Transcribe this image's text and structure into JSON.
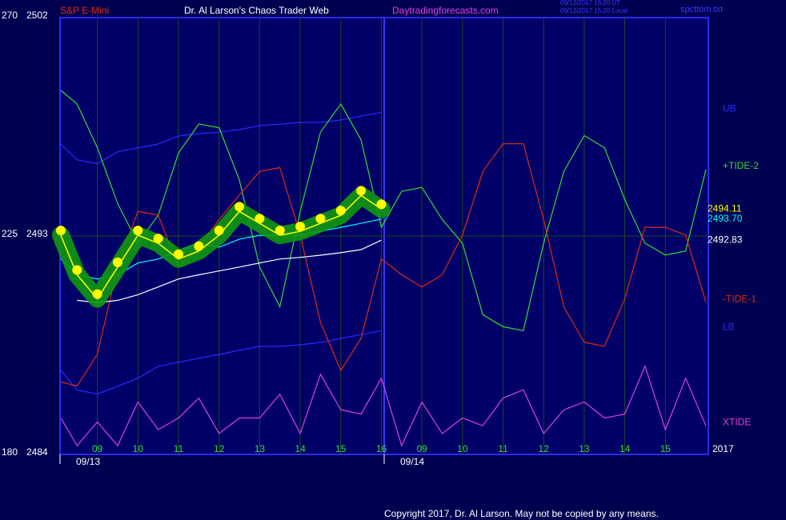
{
  "chart_data": {
    "type": "line",
    "header": {
      "symbol": "S&P E-Mini",
      "title": "Dr. Al Larson's Chaos Trader Web",
      "site": "Daytradingforecasts.com",
      "time_ut": "09/13/2017 16:20 UT",
      "time_local": "09/13/2017 15:20 Local",
      "file": "spcttom.txt"
    },
    "copyright": "Copyright 2017, Dr. Al Larson. May not be copied by any means.",
    "year": "2017",
    "date_labels": [
      "09/13",
      "09/14"
    ],
    "x": [
      -0.9,
      -0.5,
      0,
      0.5,
      1,
      1.5,
      2,
      2.5,
      3,
      3.5,
      4,
      4.5,
      5,
      5.5,
      6,
      6.5,
      7,
      7.5,
      8,
      8.5,
      9,
      9.5,
      10,
      10.5,
      11,
      11.5,
      12,
      12.5,
      13,
      13.5,
      14,
      14.5,
      15
    ],
    "xlim": [
      -0.92,
      15.06
    ],
    "xticks": [
      {
        "value": 0,
        "label": "09"
      },
      {
        "value": 1,
        "label": "10"
      },
      {
        "value": 2,
        "label": "11"
      },
      {
        "value": 3,
        "label": "12"
      },
      {
        "value": 4,
        "label": "13"
      },
      {
        "value": 5,
        "label": "14"
      },
      {
        "value": 6,
        "label": "15"
      },
      {
        "value": 7,
        "label": "16"
      },
      {
        "value": 8,
        "label": "09"
      },
      {
        "value": 9,
        "label": "10"
      },
      {
        "value": 10,
        "label": "11"
      },
      {
        "value": 11,
        "label": "12"
      },
      {
        "value": 12,
        "label": "13"
      },
      {
        "value": 13,
        "label": "14"
      },
      {
        "value": 14,
        "label": "15"
      }
    ],
    "ylim": [
      2484,
      2502
    ],
    "yticks": [
      2484,
      2493,
      2502
    ],
    "y2lim": [
      180,
      270
    ],
    "y2ticks": [
      180,
      225,
      270
    ],
    "grid": true,
    "series": [
      {
        "name": "UB",
        "color": "#2a2aff",
        "values": [
          2496.79,
          2496.14,
          2495.98,
          2496.47,
          2496.63,
          2496.79,
          2497.12,
          2497.22,
          2497.28,
          2497.38,
          2497.55,
          2497.61,
          2497.68,
          2497.68,
          2497.78,
          2497.94,
          2498.1,
          null,
          null,
          null,
          null,
          null,
          null,
          null,
          null,
          null,
          null,
          null,
          null,
          null,
          null,
          null,
          null
        ]
      },
      {
        "name": "LB",
        "color": "#2a2aff",
        "values": [
          2487.47,
          2486.65,
          2486.49,
          2486.81,
          2487.14,
          2487.63,
          2487.8,
          2487.96,
          2488.12,
          2488.29,
          2488.45,
          2488.45,
          2488.52,
          2488.61,
          2488.78,
          2488.94,
          2489.1,
          null,
          null,
          null,
          null,
          null,
          null,
          null,
          null,
          null,
          null,
          null,
          null,
          null,
          null,
          null,
          null
        ]
      },
      {
        "name": "+TIDE-2",
        "color": "#33dd33",
        "axis": "y2",
        "values": [
          255.0,
          252.2,
          243.2,
          231.7,
          223.5,
          229.3,
          242.1,
          248.1,
          247.3,
          236.6,
          218.6,
          210.4,
          230.1,
          246.4,
          252.2,
          244.8,
          226.8,
          234.2,
          235.0,
          228.4,
          223.5,
          208.8,
          206.3,
          205.5,
          223.5,
          238.3,
          245.7,
          243.2,
          232.5,
          223.5,
          221.1,
          221.9,
          238.7
        ]
      },
      {
        "name": "-TIDE-1",
        "color": "#e02a10",
        "axis": "y2",
        "values": [
          194.9,
          194.1,
          200.6,
          218.6,
          230.1,
          229.3,
          218.6,
          222.7,
          228.4,
          233.4,
          238.3,
          239.1,
          225.2,
          207.2,
          197.3,
          203.9,
          220.3,
          217.0,
          214.5,
          217.0,
          225.2,
          238.3,
          244.0,
          244.0,
          228.4,
          210.4,
          203.1,
          202.3,
          212.1,
          226.8,
          226.8,
          225.2,
          211.3
        ]
      },
      {
        "name": "XTIDE",
        "color": "#e040e0",
        "axis": "y2",
        "values": [
          187.5,
          181.8,
          186.7,
          181.8,
          190.8,
          185.1,
          187.5,
          191.6,
          184.3,
          187.5,
          187.5,
          192.4,
          184.3,
          196.5,
          189.2,
          188.3,
          195.7,
          181.8,
          190.8,
          184.3,
          187.5,
          185.9,
          191.6,
          193.3,
          184.3,
          189.2,
          190.8,
          187.5,
          188.3,
          198.2,
          185.1,
          195.7,
          185.9
        ]
      },
      {
        "color": "#ffffff",
        "values": [
          null,
          2490.35,
          2490.25,
          2490.35,
          2490.58,
          2490.9,
          2491.23,
          2491.4,
          2491.56,
          2491.72,
          2491.89,
          2492.05,
          2492.12,
          2492.21,
          2492.31,
          2492.44,
          2492.83,
          null,
          null,
          null,
          null,
          null,
          null,
          null,
          null,
          null,
          null,
          null,
          null,
          null,
          null,
          null,
          null
        ],
        "value_labels": [
          null,
          null,
          null,
          null,
          null,
          null,
          null,
          null,
          null,
          null,
          null,
          null,
          null,
          null,
          null,
          null,
          "2492.83",
          null,
          null,
          null,
          null,
          null,
          null,
          null,
          null,
          null,
          null,
          null,
          null,
          null,
          null,
          null,
          null
        ]
      },
      {
        "color": "#00ffff",
        "values": [
          2492.05,
          2491.4,
          2491.23,
          2491.4,
          2491.89,
          2492.05,
          2492.38,
          2492.7,
          2492.54,
          2492.87,
          2493.03,
          2493.03,
          2493.03,
          2493.19,
          2493.36,
          2493.52,
          2493.7,
          null,
          null,
          null,
          null,
          null,
          null,
          null,
          null,
          null,
          null,
          null,
          null,
          null,
          null,
          null,
          null
        ],
        "value_labels": [
          null,
          null,
          null,
          null,
          null,
          null,
          null,
          null,
          null,
          null,
          null,
          null,
          null,
          null,
          null,
          null,
          "2493.70",
          null,
          null,
          null,
          null,
          null,
          null,
          null,
          null,
          null,
          null,
          null,
          null,
          null,
          null,
          null,
          null
        ]
      },
      {
        "color": "#ffff00",
        "halo": "#119911",
        "values": [
          2493.03,
          2491.4,
          2490.41,
          2491.72,
          2493.03,
          2492.7,
          2492.05,
          2492.38,
          2493.03,
          2494.01,
          2493.52,
          2493.03,
          2493.19,
          2493.52,
          2493.85,
          2494.67,
          2494.11,
          null,
          null,
          null,
          null,
          null,
          null,
          null,
          null,
          null,
          null,
          null,
          null,
          null,
          null,
          null,
          null
        ],
        "value_labels": [
          null,
          null,
          null,
          null,
          null,
          null,
          null,
          null,
          null,
          null,
          null,
          null,
          null,
          null,
          null,
          null,
          "2494.11",
          null,
          null,
          null,
          null,
          null,
          null,
          null,
          null,
          null,
          null,
          null,
          null,
          null,
          null,
          null,
          null
        ]
      }
    ]
  }
}
